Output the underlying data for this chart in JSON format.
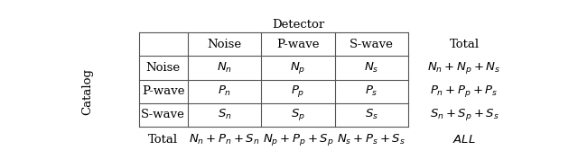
{
  "title": "Detector",
  "catalog_label": "Catalog",
  "total_label": "Total",
  "col_headers": [
    "Noise",
    "P-wave",
    "S-wave"
  ],
  "row_headers": [
    "Noise",
    "P-wave",
    "S-wave"
  ],
  "cells": [
    [
      "$N_n$",
      "$N_p$",
      "$N_s$"
    ],
    [
      "$P_n$",
      "$P_p$",
      "$P_s$"
    ],
    [
      "$S_n$",
      "$S_p$",
      "$S_s$"
    ]
  ],
  "row_totals": [
    "$N_n + N_p + N_s$",
    "$P_n + P_p + P_s$",
    "$S_n + S_p + S_s$"
  ],
  "col_totals": [
    "$N_n + P_n + S_n$",
    "$N_p + P_p + S_p$",
    "$N_s + P_s + S_s$"
  ],
  "grand_total": "$ALL$",
  "bg_color": "#ffffff",
  "line_color": "#555555",
  "text_color": "#000000",
  "fontsize": 9.5
}
